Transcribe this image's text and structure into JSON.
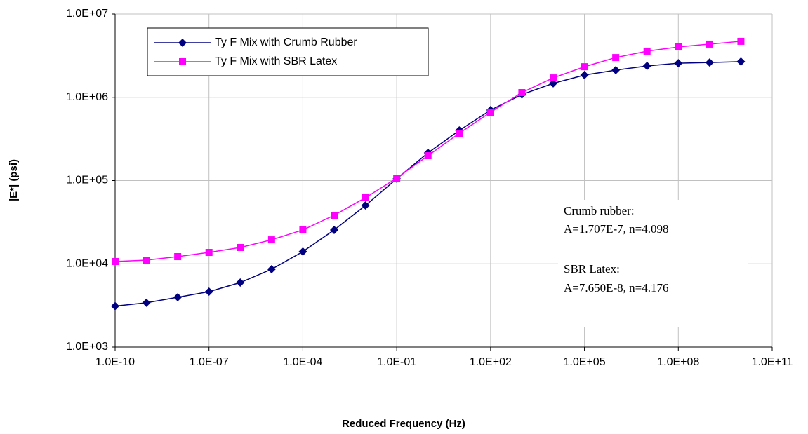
{
  "chart_data": {
    "type": "line",
    "x_label": "Reduced Frequency (Hz)",
    "y_label": "|E*| (psi)",
    "x": [
      1e-10,
      1e-09,
      1e-08,
      1e-07,
      1e-06,
      1e-05,
      0.0001,
      0.001,
      0.01,
      0.1,
      1,
      10,
      100,
      1000,
      10000,
      100000,
      1000000,
      10000000,
      100000000,
      1000000000,
      10000000000
    ],
    "series": [
      {
        "name": "Ty F Mix with Crumb Rubber",
        "color": "#000080",
        "marker": "diamond",
        "values": [
          3100,
          3400,
          3960,
          4630,
          5950,
          8600,
          14000,
          25500,
          50200,
          105000,
          215000,
          400000,
          702000,
          1080000,
          1470000,
          1850000,
          2120000,
          2380000,
          2570000,
          2620000,
          2680000
        ]
      },
      {
        "name": "Ty F Mix with SBR Latex",
        "color": "#ff00ff",
        "marker": "square",
        "values": [
          10650,
          11070,
          12200,
          13700,
          15700,
          19400,
          25500,
          38300,
          62200,
          107000,
          199000,
          370000,
          662000,
          1140000,
          1710000,
          2330000,
          3000000,
          3580000,
          4020000,
          4350000,
          4700000
        ]
      }
    ],
    "xscale": "log",
    "yscale": "log",
    "xlim": [
      1e-10,
      100000000000.0
    ],
    "ylim": [
      1000,
      10000000
    ],
    "xticks": [
      {
        "value": 1e-10,
        "label": "1.0E-10"
      },
      {
        "value": 1e-07,
        "label": "1.0E-07"
      },
      {
        "value": 0.0001,
        "label": "1.0E-04"
      },
      {
        "value": 0.1,
        "label": "1.0E-01"
      },
      {
        "value": 100,
        "label": "1.0E+02"
      },
      {
        "value": 100000,
        "label": "1.0E+05"
      },
      {
        "value": 100000000,
        "label": "1.0E+08"
      },
      {
        "value": 100000000000,
        "label": "1.0E+11"
      }
    ],
    "yticks": [
      {
        "value": 1000,
        "label": "1.0E+03"
      },
      {
        "value": 10000,
        "label": "1.0E+04"
      },
      {
        "value": 100000,
        "label": "1.0E+05"
      },
      {
        "value": 1000000,
        "label": "1.0E+06"
      },
      {
        "value": 10000000,
        "label": "1.0E+07"
      }
    ],
    "grid": true,
    "legend": "upper left",
    "annotations": [
      "Crumb rubber:",
      "A=1.707E-7, n=4.098",
      "SBR Latex:",
      "A=7.650E-8, n=4.176"
    ]
  }
}
